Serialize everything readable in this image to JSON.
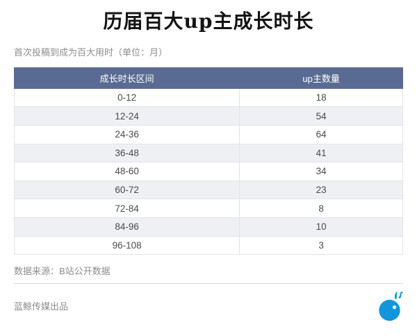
{
  "page": {
    "title": "历届百大up主成长时长",
    "subtitle": "首次投稿到成为百大用时（单位：月）"
  },
  "table": {
    "headers": [
      "成长时长区间",
      "up主数量"
    ],
    "rows": [
      [
        "0-12",
        "18"
      ],
      [
        "12-24",
        "54"
      ],
      [
        "24-36",
        "64"
      ],
      [
        "36-48",
        "41"
      ],
      [
        "48-60",
        "34"
      ],
      [
        "60-72",
        "23"
      ],
      [
        "72-84",
        "8"
      ],
      [
        "84-96",
        "10"
      ],
      [
        "96-108",
        "3"
      ]
    ]
  },
  "footer": {
    "source": "数据来源：B站公开数据",
    "brand": "蓝鲸传媒出品",
    "logo_icon": "blue-whale-icon"
  },
  "colors": {
    "header_bg": "#5a6b93",
    "header_text": "#ffffff",
    "row_alt_bg": "#eef0f4",
    "cell_border": "#e1e3ea",
    "body_text": "#4a4a4a",
    "muted_text": "#8c8c8c",
    "logo_blue": "#1296db"
  },
  "chart_data": {
    "type": "table",
    "title": "历届百大up主成长时长",
    "subtitle": "首次投稿到成为百大用时（单位：月）",
    "columns": [
      "成长时长区间",
      "up主数量"
    ],
    "categories": [
      "0-12",
      "12-24",
      "24-36",
      "36-48",
      "48-60",
      "60-72",
      "72-84",
      "84-96",
      "96-108"
    ],
    "values": [
      18,
      54,
      64,
      41,
      34,
      23,
      8,
      10,
      3
    ],
    "source": "数据来源：B站公开数据"
  }
}
